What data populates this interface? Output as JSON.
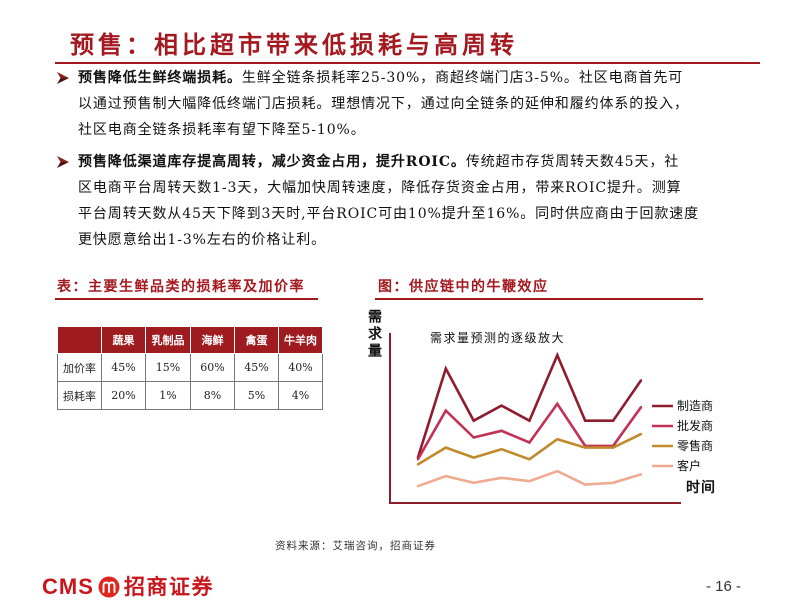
{
  "slide": {
    "title": "预售：相比超市带来低损耗与高周转",
    "page_number": "- 16 -"
  },
  "bullets": [
    {
      "bold": "预售降低生鲜终端损耗。",
      "lines": [
        "生鲜全链条损耗率25-30%，商超终端门店3-5%。社区电商首先可",
        "以通过预售制大幅降低终端门店损耗。理想情况下，通过向全链条的延伸和履约体系的投入，",
        "社区电商全链条损耗率有望下降至5-10%。"
      ]
    },
    {
      "bold": "预售降低渠道库存提高周转，减少资金占用，提升ROIC。",
      "lines": [
        "传统超市存货周转天数45天，社",
        "区电商平台周转天数1-3天，大幅加快周转速度，降低存货资金占用，带来ROIC提升。测算",
        "平台周转天数从45天下降到3天时,平台ROIC可由10%提升至16%。同时供应商由于回款速度",
        "更快愿意给出1-3%左右的价格让利。"
      ]
    }
  ],
  "table": {
    "caption": "表：主要生鲜品类的损耗率及加价率",
    "columns": [
      "",
      "蔬果",
      "乳制品",
      "海鲜",
      "禽蛋",
      "牛羊肉"
    ],
    "rows": [
      [
        "加价率",
        "45%",
        "15%",
        "60%",
        "45%",
        "40%"
      ],
      [
        "损耗率",
        "20%",
        "1%",
        "8%",
        "5%",
        "4%"
      ]
    ]
  },
  "chart_data": {
    "type": "line",
    "title": "图：供应链中的牛鞭效应",
    "xlabel": "时间",
    "ylabel": "需求量",
    "annotation": "需求量预测的逐级放大",
    "x": [
      1,
      2,
      3,
      4,
      5,
      6,
      7,
      8,
      9
    ],
    "xlim": [
      0,
      10.4
    ],
    "ylim": [
      0,
      100
    ],
    "grid": false,
    "legend": "right",
    "series": [
      {
        "name": "制造商",
        "color": "#8E1C2E",
        "values": [
          27,
          80,
          49,
          58,
          49,
          88,
          49,
          49,
          73
        ]
      },
      {
        "name": "批发商",
        "color": "#C23254",
        "values": [
          26,
          55,
          39,
          43,
          36,
          59,
          34,
          34,
          57
        ]
      },
      {
        "name": "零售商",
        "color": "#C18B2D",
        "values": [
          23,
          33,
          27,
          32,
          26,
          38,
          33,
          33,
          41
        ]
      },
      {
        "name": "客户",
        "color": "#EFAA90",
        "values": [
          10,
          16,
          12,
          15,
          13,
          19,
          11,
          12,
          17
        ]
      }
    ]
  },
  "source": "资料来源：艾瑞咨询，招商证券",
  "footer": {
    "logo_text": "CMS",
    "company": "招商证券"
  },
  "colors": {
    "accent": "#A3191F",
    "table_header": "#9E1B20",
    "axis": "#8C1C2A",
    "brand": "#C8161D"
  }
}
